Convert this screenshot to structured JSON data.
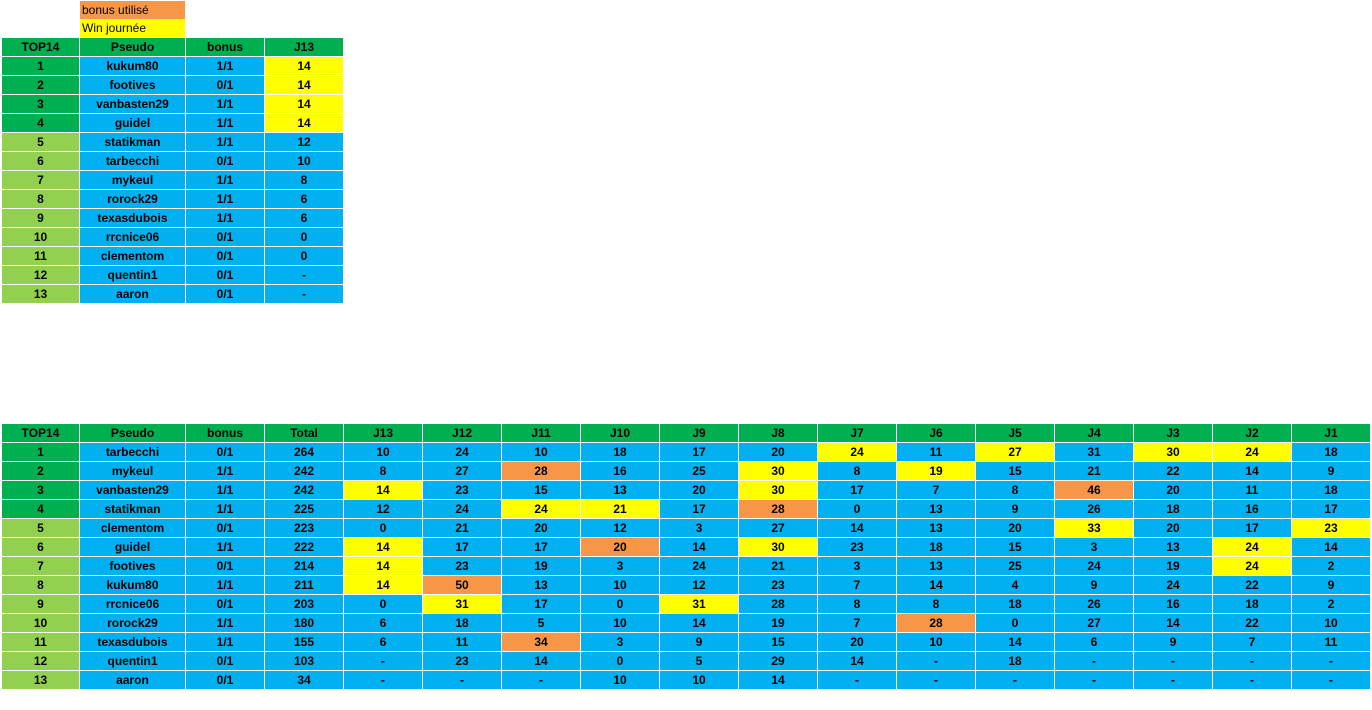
{
  "legend": {
    "bonus_used": "bonus utilisé",
    "day_win": "Win journée",
    "colors": {
      "bonus_used": "#F79646",
      "day_win": "#FFFF00",
      "header": "#00B050",
      "rank_top": "#00B050",
      "rank_rest": "#92D050",
      "cell": "#00B0F0"
    }
  },
  "day_table": {
    "headers": [
      "TOP14",
      "Pseudo",
      "bonus",
      "J13"
    ],
    "rows": [
      {
        "rank": "1",
        "pseudo": "kukum80",
        "bonus": "1/1",
        "score": "14",
        "hl": "y"
      },
      {
        "rank": "2",
        "pseudo": "footives",
        "bonus": "0/1",
        "score": "14",
        "hl": "y"
      },
      {
        "rank": "3",
        "pseudo": "vanbasten29",
        "bonus": "1/1",
        "score": "14",
        "hl": "y"
      },
      {
        "rank": "4",
        "pseudo": "guidel",
        "bonus": "1/1",
        "score": "14",
        "hl": "y"
      },
      {
        "rank": "5",
        "pseudo": "statikman",
        "bonus": "1/1",
        "score": "12",
        "hl": ""
      },
      {
        "rank": "6",
        "pseudo": "tarbecchi",
        "bonus": "0/1",
        "score": "10",
        "hl": ""
      },
      {
        "rank": "7",
        "pseudo": "mykeul",
        "bonus": "1/1",
        "score": "8",
        "hl": ""
      },
      {
        "rank": "8",
        "pseudo": "rorock29",
        "bonus": "1/1",
        "score": "6",
        "hl": ""
      },
      {
        "rank": "9",
        "pseudo": "texasdubois",
        "bonus": "1/1",
        "score": "6",
        "hl": ""
      },
      {
        "rank": "10",
        "pseudo": "rrcnice06",
        "bonus": "0/1",
        "score": "0",
        "hl": ""
      },
      {
        "rank": "11",
        "pseudo": "clementom",
        "bonus": "0/1",
        "score": "0",
        "hl": ""
      },
      {
        "rank": "12",
        "pseudo": "quentin1",
        "bonus": "0/1",
        "score": "-",
        "hl": ""
      },
      {
        "rank": "13",
        "pseudo": "aaron",
        "bonus": "0/1",
        "score": "-",
        "hl": ""
      }
    ]
  },
  "overall_table": {
    "headers": [
      "TOP14",
      "Pseudo",
      "bonus",
      "Total",
      "J13",
      "J12",
      "J11",
      "J10",
      "J9",
      "J8",
      "J7",
      "J6",
      "J5",
      "J4",
      "J3",
      "J2",
      "J1"
    ],
    "rows": [
      {
        "rank": "1",
        "pseudo": "tarbecchi",
        "bonus": "0/1",
        "total": "264",
        "days": [
          "10",
          "24",
          "10",
          "18",
          "17",
          "20",
          "24",
          "11",
          "27",
          "31",
          "30",
          "24",
          "18"
        ],
        "hl": [
          "",
          "",
          "",
          "",
          "",
          "",
          "y",
          "",
          "y",
          "",
          "y",
          "y",
          ""
        ]
      },
      {
        "rank": "2",
        "pseudo": "mykeul",
        "bonus": "1/1",
        "total": "242",
        "days": [
          "8",
          "27",
          "28",
          "16",
          "25",
          "30",
          "8",
          "19",
          "15",
          "21",
          "22",
          "14",
          "9"
        ],
        "hl": [
          "",
          "",
          "o",
          "",
          "",
          "y",
          "",
          "y",
          "",
          "",
          "",
          "",
          ""
        ]
      },
      {
        "rank": "3",
        "pseudo": "vanbasten29",
        "bonus": "1/1",
        "total": "242",
        "days": [
          "14",
          "23",
          "15",
          "13",
          "20",
          "30",
          "17",
          "7",
          "8",
          "46",
          "20",
          "11",
          "18"
        ],
        "hl": [
          "y",
          "",
          "",
          "",
          "",
          "y",
          "",
          "",
          "",
          "o",
          "",
          "",
          ""
        ]
      },
      {
        "rank": "4",
        "pseudo": "statikman",
        "bonus": "1/1",
        "total": "225",
        "days": [
          "12",
          "24",
          "24",
          "21",
          "17",
          "28",
          "0",
          "13",
          "9",
          "26",
          "18",
          "16",
          "17"
        ],
        "hl": [
          "",
          "",
          "y",
          "y",
          "",
          "o",
          "",
          "",
          "",
          "",
          "",
          "",
          ""
        ]
      },
      {
        "rank": "5",
        "pseudo": "clementom",
        "bonus": "0/1",
        "total": "223",
        "days": [
          "0",
          "21",
          "20",
          "12",
          "3",
          "27",
          "14",
          "13",
          "20",
          "33",
          "20",
          "17",
          "23"
        ],
        "hl": [
          "",
          "",
          "",
          "",
          "",
          "",
          "",
          "",
          "",
          "y",
          "",
          "",
          "y"
        ]
      },
      {
        "rank": "6",
        "pseudo": "guidel",
        "bonus": "1/1",
        "total": "222",
        "days": [
          "14",
          "17",
          "17",
          "20",
          "14",
          "30",
          "23",
          "18",
          "15",
          "3",
          "13",
          "24",
          "14"
        ],
        "hl": [
          "y",
          "",
          "",
          "o",
          "",
          "y",
          "",
          "",
          "",
          "",
          "",
          "y",
          ""
        ]
      },
      {
        "rank": "7",
        "pseudo": "footives",
        "bonus": "0/1",
        "total": "214",
        "days": [
          "14",
          "23",
          "19",
          "3",
          "24",
          "21",
          "3",
          "13",
          "25",
          "24",
          "19",
          "24",
          "2"
        ],
        "hl": [
          "y",
          "",
          "",
          "",
          "",
          "",
          "",
          "",
          "",
          "",
          "",
          "y",
          ""
        ]
      },
      {
        "rank": "8",
        "pseudo": "kukum80",
        "bonus": "1/1",
        "total": "211",
        "days": [
          "14",
          "50",
          "13",
          "10",
          "12",
          "23",
          "7",
          "14",
          "4",
          "9",
          "24",
          "22",
          "9"
        ],
        "hl": [
          "y",
          "o",
          "",
          "",
          "",
          "",
          "",
          "",
          "",
          "",
          "",
          "",
          ""
        ]
      },
      {
        "rank": "9",
        "pseudo": "rrcnice06",
        "bonus": "0/1",
        "total": "203",
        "days": [
          "0",
          "31",
          "17",
          "0",
          "31",
          "28",
          "8",
          "8",
          "18",
          "26",
          "16",
          "18",
          "2"
        ],
        "hl": [
          "",
          "y",
          "",
          "",
          "y",
          "",
          "",
          "",
          "",
          "",
          "",
          "",
          ""
        ]
      },
      {
        "rank": "10",
        "pseudo": "rorock29",
        "bonus": "1/1",
        "total": "180",
        "days": [
          "6",
          "18",
          "5",
          "10",
          "14",
          "19",
          "7",
          "28",
          "0",
          "27",
          "14",
          "22",
          "10"
        ],
        "hl": [
          "",
          "",
          "",
          "",
          "",
          "",
          "",
          "o",
          "",
          "",
          "",
          "",
          ""
        ]
      },
      {
        "rank": "11",
        "pseudo": "texasdubois",
        "bonus": "1/1",
        "total": "155",
        "days": [
          "6",
          "11",
          "34",
          "3",
          "9",
          "15",
          "20",
          "10",
          "14",
          "6",
          "9",
          "7",
          "11"
        ],
        "hl": [
          "",
          "",
          "o",
          "",
          "",
          "",
          "",
          "",
          "",
          "",
          "",
          "",
          ""
        ]
      },
      {
        "rank": "12",
        "pseudo": "quentin1",
        "bonus": "0/1",
        "total": "103",
        "days": [
          "-",
          "23",
          "14",
          "0",
          "5",
          "29",
          "14",
          "-",
          "18",
          "-",
          "-",
          "-",
          "-"
        ],
        "hl": [
          "",
          "",
          "",
          "",
          "",
          "",
          "",
          "",
          "",
          "",
          "",
          "",
          ""
        ]
      },
      {
        "rank": "13",
        "pseudo": "aaron",
        "bonus": "0/1",
        "total": "34",
        "days": [
          "-",
          "-",
          "-",
          "10",
          "10",
          "14",
          "-",
          "-",
          "-",
          "-",
          "-",
          "-",
          "-"
        ],
        "hl": [
          "",
          "",
          "",
          "",
          "",
          "",
          "",
          "",
          "",
          "",
          "",
          "",
          ""
        ]
      }
    ]
  }
}
